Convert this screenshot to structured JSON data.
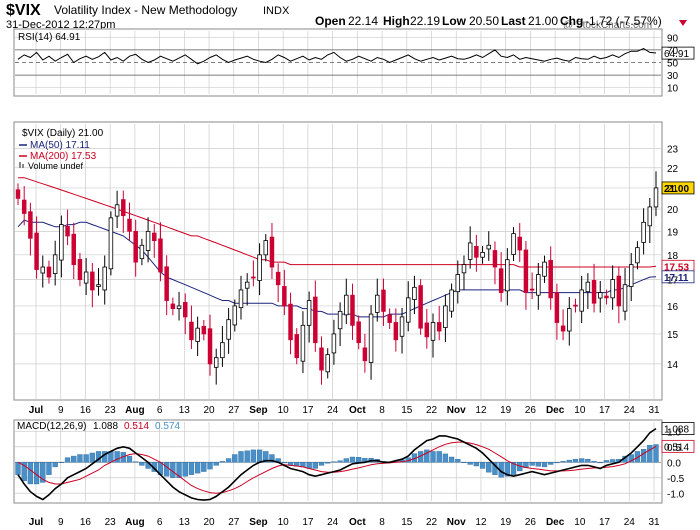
{
  "header": {
    "symbol": "$VIX",
    "name": "Volatility Index - New Methodology",
    "exchange": "INDX",
    "date": "31-Dec-2012 12:27pm",
    "open_label": "Open",
    "open": "22.14",
    "high_label": "High",
    "high": "22.19",
    "low_label": "Low",
    "low": "20.50",
    "last_label": "Last",
    "last": "21.00",
    "chg_label": "Chg",
    "chg": "-1.72 (-7.57%)",
    "watermark": "@ StockCharts.com"
  },
  "colors": {
    "up": "#000000",
    "down": "#cc0033",
    "ma50": "#1a237e",
    "ma200": "#cc0022",
    "rsi": "#000000",
    "macd": "#000000",
    "signal": "#cc0022",
    "hist": "#4a90c8",
    "grid": "#cccccc",
    "last_box": "#ffd700"
  },
  "chart_data": [
    {
      "type": "line",
      "panel": "RSI",
      "legend": "RSI(14) 64.91",
      "y_ticks": [
        10,
        30,
        50,
        70,
        90
      ],
      "ylim": [
        0,
        100
      ],
      "reference_lines": [
        30,
        50,
        70
      ],
      "last_value": 64.91,
      "last_value_label": "64.91",
      "series": [
        {
          "values": [
            55,
            62,
            58,
            66,
            54,
            60,
            52,
            58,
            63,
            50,
            56,
            60,
            55,
            59,
            66,
            54,
            58,
            52,
            60,
            63,
            55,
            50,
            54,
            60,
            56,
            52,
            57,
            62,
            55,
            48,
            52,
            58,
            62,
            55,
            50,
            54,
            57,
            60,
            55,
            52,
            50,
            55,
            62,
            58,
            52,
            56,
            60,
            54,
            58,
            55,
            62,
            66,
            58,
            52,
            55,
            60,
            56,
            52,
            58,
            55,
            50,
            54,
            58,
            62,
            56,
            52,
            55,
            58,
            54,
            57,
            60,
            56,
            55,
            58,
            62,
            58,
            64,
            70,
            60,
            58,
            62,
            55,
            58,
            56,
            54,
            52,
            55,
            57,
            54,
            52,
            58,
            56,
            55,
            60,
            56,
            58,
            62,
            58,
            64,
            68,
            68,
            72,
            66,
            65
          ]
        }
      ]
    },
    {
      "type": "candlestick",
      "panel": "price",
      "legend": [
        "$VIX (Daily) 21.00",
        "MA(50) 17.11",
        "MA(200) 17.53",
        "Volume undef"
      ],
      "y_ticks": [
        14,
        15,
        16,
        17,
        18,
        19,
        20,
        21,
        22,
        23
      ],
      "y_scale": "log",
      "ylim": [
        13.0,
        24.0
      ],
      "x_labels": [
        "Jul",
        "9",
        "16",
        "23",
        "Aug",
        "6",
        "13",
        "20",
        "27",
        "Sep",
        "10",
        "17",
        "24",
        "Oct",
        "8",
        "15",
        "22",
        "Nov",
        "12",
        "19",
        "26",
        "Dec",
        "10",
        "17",
        "24",
        "31"
      ],
      "value_labels": {
        "last": "21.00",
        "ma200": "17.53",
        "ma50": "17.11"
      },
      "closes": [
        20.5,
        19.8,
        18.7,
        17.4,
        17.5,
        17.1,
        18.0,
        19.3,
        18.8,
        17.6,
        17.0,
        17.3,
        16.6,
        16.8,
        17.5,
        19.6,
        20.2,
        19.7,
        19.0,
        17.7,
        18.4,
        19.0,
        18.6,
        17.3,
        16.2,
        15.9,
        16.0,
        15.6,
        14.8,
        15.2,
        15.0,
        14.0,
        14.2,
        14.7,
        15.5,
        16.0,
        16.6,
        16.9,
        17.1,
        18.0,
        18.6,
        17.5,
        16.8,
        16.0,
        14.8,
        14.2,
        15.3,
        16.2,
        14.7,
        13.8,
        14.3,
        15.0,
        15.8,
        16.4,
        15.3,
        14.7,
        14.1,
        15.7,
        16.4,
        15.8,
        15.4,
        14.8,
        15.6,
        16.3,
        16.7,
        15.2,
        14.9,
        15.4,
        15.1,
        16.0,
        16.6,
        17.2,
        17.6,
        18.5,
        17.9,
        18.1,
        18.4,
        17.5,
        16.5,
        17.8,
        18.9,
        18.2,
        16.5,
        16.6,
        17.2,
        17.7,
        16.3,
        15.4,
        15.1,
        15.9,
        16.0,
        16.6,
        16.9,
        16.1,
        16.5,
        16.3,
        17.0,
        16.0,
        16.8,
        17.6,
        18.3,
        19.4,
        20.1,
        21.0
      ],
      "ma50": [
        19.2,
        19.5,
        19.4,
        19.4,
        19.4,
        19.3,
        19.2,
        19.2,
        19.3,
        19.3,
        19.4,
        19.4,
        19.3,
        19.2,
        19.1,
        19.0,
        18.9,
        18.8,
        18.6,
        18.4,
        18.2,
        17.9,
        17.6,
        17.3,
        17.1,
        17.0,
        16.9,
        16.8,
        16.7,
        16.6,
        16.5,
        16.4,
        16.3,
        16.2,
        16.2,
        16.1,
        16.1,
        16.1,
        16.1,
        16.1,
        16.1,
        16.1,
        16.0,
        16.0,
        16.0,
        16.0,
        15.9,
        15.9,
        15.8,
        15.8,
        15.7,
        15.7,
        15.7,
        15.7,
        15.7,
        15.6,
        15.6,
        15.6,
        15.6,
        15.6,
        15.7,
        15.7,
        15.7,
        15.8,
        15.9,
        16.0,
        16.1,
        16.2,
        16.3,
        16.4,
        16.5,
        16.6,
        16.6,
        16.6,
        16.6,
        16.6,
        16.6,
        16.6,
        16.6,
        16.6,
        16.6,
        16.6,
        16.5,
        16.5,
        16.5,
        16.5,
        16.5,
        16.5,
        16.5,
        16.5,
        16.5,
        16.5,
        16.5,
        16.5,
        16.5,
        16.5,
        16.6,
        16.6,
        16.7,
        16.8,
        16.9,
        17.0,
        17.1,
        17.11
      ],
      "ma200": [
        21.5,
        21.5,
        21.4,
        21.3,
        21.2,
        21.1,
        21.0,
        20.9,
        20.8,
        20.7,
        20.6,
        20.5,
        20.4,
        20.3,
        20.2,
        20.1,
        20.0,
        19.9,
        19.8,
        19.7,
        19.6,
        19.5,
        19.4,
        19.3,
        19.2,
        19.1,
        19.0,
        18.9,
        18.8,
        18.8,
        18.7,
        18.6,
        18.5,
        18.4,
        18.3,
        18.2,
        18.1,
        18.0,
        17.9,
        17.8,
        17.8,
        17.7,
        17.7,
        17.7,
        17.6,
        17.6,
        17.6,
        17.6,
        17.6,
        17.6,
        17.6,
        17.6,
        17.6,
        17.6,
        17.6,
        17.6,
        17.6,
        17.6,
        17.6,
        17.6,
        17.6,
        17.6,
        17.6,
        17.6,
        17.6,
        17.6,
        17.6,
        17.6,
        17.6,
        17.6,
        17.6,
        17.6,
        17.6,
        17.6,
        17.6,
        17.6,
        17.6,
        17.6,
        17.6,
        17.6,
        17.6,
        17.5,
        17.5,
        17.5,
        17.5,
        17.5,
        17.5,
        17.5,
        17.5,
        17.5,
        17.5,
        17.5,
        17.5,
        17.5,
        17.5,
        17.5,
        17.5,
        17.5,
        17.5,
        17.5,
        17.5,
        17.5,
        17.5,
        17.53
      ]
    },
    {
      "type": "line",
      "panel": "MACD",
      "legend": [
        "MACD(12,26,9)",
        "1.088",
        "0.514",
        "0.574"
      ],
      "y_ticks": [
        -1.0,
        -0.5,
        0.0,
        0.5,
        1.0
      ],
      "ylim": [
        -1.25,
        1.3
      ],
      "value_labels": {
        "macd": "1.088",
        "signal": "0.514"
      },
      "series": [
        {
          "name": "MACD",
          "values": [
            -0.4,
            -0.7,
            -0.95,
            -1.1,
            -1.2,
            -1.05,
            -0.85,
            -0.7,
            -0.5,
            -0.4,
            -0.3,
            -0.2,
            -0.05,
            0.1,
            0.25,
            0.35,
            0.45,
            0.5,
            0.45,
            0.3,
            0.15,
            0.0,
            -0.2,
            -0.4,
            -0.6,
            -0.8,
            -0.95,
            -1.05,
            -1.15,
            -1.2,
            -1.22,
            -1.2,
            -1.1,
            -0.95,
            -0.8,
            -0.6,
            -0.4,
            -0.25,
            -0.1,
            0.0,
            0.05,
            0.05,
            0.0,
            -0.1,
            -0.2,
            -0.25,
            -0.3,
            -0.4,
            -0.45,
            -0.4,
            -0.35,
            -0.3,
            -0.25,
            -0.15,
            -0.05,
            -0.02,
            0.0,
            0.05,
            0.05,
            0.0,
            0.0,
            0.05,
            0.1,
            0.2,
            0.4,
            0.55,
            0.7,
            0.75,
            0.85,
            0.85,
            0.8,
            0.75,
            0.65,
            0.55,
            0.45,
            0.3,
            0.1,
            -0.1,
            -0.3,
            -0.4,
            -0.45,
            -0.4,
            -0.35,
            -0.3,
            -0.35,
            -0.4,
            -0.35,
            -0.3,
            -0.25,
            -0.2,
            -0.15,
            -0.1,
            -0.1,
            -0.15,
            -0.2,
            -0.1,
            -0.05,
            0.0,
            0.15,
            0.3,
            0.5,
            0.7,
            0.95,
            1.088
          ]
        },
        {
          "name": "Signal",
          "values": [
            0.0,
            -0.1,
            -0.25,
            -0.4,
            -0.55,
            -0.65,
            -0.7,
            -0.7,
            -0.65,
            -0.6,
            -0.55,
            -0.45,
            -0.35,
            -0.25,
            -0.1,
            0.0,
            0.1,
            0.18,
            0.25,
            0.28,
            0.25,
            0.2,
            0.1,
            0.0,
            -0.15,
            -0.3,
            -0.45,
            -0.6,
            -0.75,
            -0.85,
            -0.92,
            -0.98,
            -1.0,
            -0.98,
            -0.92,
            -0.85,
            -0.75,
            -0.62,
            -0.5,
            -0.4,
            -0.3,
            -0.2,
            -0.12,
            -0.08,
            -0.1,
            -0.12,
            -0.15,
            -0.2,
            -0.25,
            -0.3,
            -0.32,
            -0.32,
            -0.3,
            -0.27,
            -0.22,
            -0.18,
            -0.13,
            -0.08,
            -0.05,
            -0.03,
            -0.02,
            0.0,
            0.02,
            0.05,
            0.12,
            0.2,
            0.3,
            0.4,
            0.5,
            0.58,
            0.63,
            0.65,
            0.65,
            0.62,
            0.57,
            0.5,
            0.42,
            0.3,
            0.18,
            0.05,
            -0.05,
            -0.12,
            -0.17,
            -0.2,
            -0.22,
            -0.25,
            -0.28,
            -0.28,
            -0.28,
            -0.27,
            -0.25,
            -0.22,
            -0.2,
            -0.18,
            -0.18,
            -0.16,
            -0.14,
            -0.1,
            -0.05,
            0.05,
            0.15,
            0.28,
            0.4,
            0.514
          ]
        }
      ]
    }
  ]
}
